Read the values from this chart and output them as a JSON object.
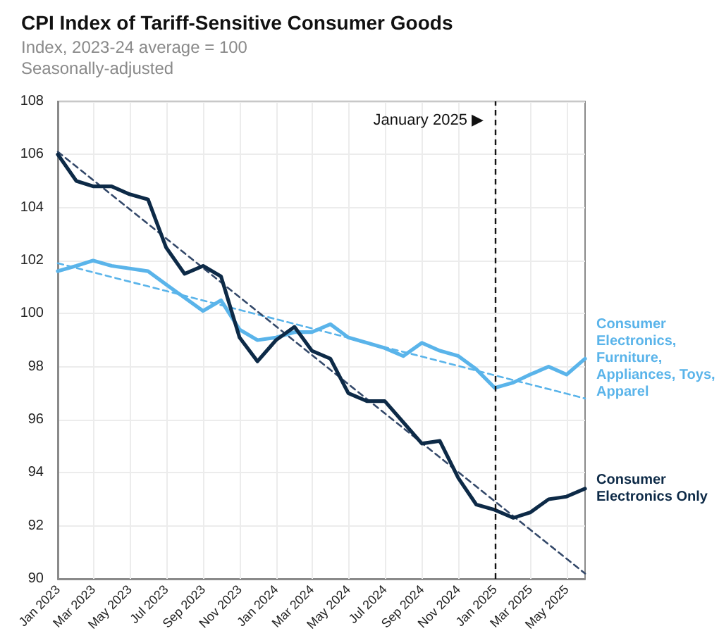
{
  "chart_data": {
    "type": "line",
    "title": "CPI Index of Tariff-Sensitive Consumer Goods",
    "subtitle": "Index, 2023-24 average = 100\nSeasonally-adjusted",
    "x": [
      "2023-01",
      "2023-02",
      "2023-03",
      "2023-04",
      "2023-05",
      "2023-06",
      "2023-07",
      "2023-08",
      "2023-09",
      "2023-10",
      "2023-11",
      "2023-12",
      "2024-01",
      "2024-02",
      "2024-03",
      "2024-04",
      "2024-05",
      "2024-06",
      "2024-07",
      "2024-08",
      "2024-09",
      "2024-10",
      "2024-11",
      "2024-12",
      "2025-01",
      "2025-02",
      "2025-03",
      "2025-04",
      "2025-05",
      "2025-06"
    ],
    "series": [
      {
        "name": "Consumer Electronics, Furniture, Appliances, Toys, Apparel",
        "color": "#5ab4ea",
        "values": [
          101.6,
          101.8,
          102.0,
          101.8,
          101.7,
          101.6,
          101.1,
          100.6,
          100.1,
          100.5,
          99.4,
          99.0,
          99.1,
          99.3,
          99.3,
          99.6,
          99.1,
          98.9,
          98.7,
          98.4,
          98.9,
          98.6,
          98.4,
          97.9,
          97.2,
          97.4,
          97.7,
          98.0,
          97.7,
          98.3
        ]
      },
      {
        "name": "Consumer Electronics Only",
        "color": "#0d2a47",
        "values": [
          106.0,
          105.0,
          104.8,
          104.8,
          104.5,
          104.3,
          102.5,
          101.5,
          101.8,
          101.4,
          99.1,
          98.2,
          99.0,
          99.5,
          98.6,
          98.3,
          97.0,
          96.7,
          96.7,
          95.9,
          95.1,
          95.2,
          93.8,
          92.8,
          92.6,
          92.3,
          92.5,
          93.0,
          93.1,
          93.4
        ]
      },
      {
        "type": "line",
        "color": "#5ab4ea",
        "line_style": "dashed",
        "x": [
          "2023-01",
          "2025-06"
        ],
        "values": [
          101.9,
          96.8
        ]
      },
      {
        "type": "line",
        "color": "#34496a",
        "line_style": "dashed",
        "x": [
          "2023-01",
          "2025-06"
        ],
        "values": [
          106.1,
          90.2
        ]
      }
    ],
    "xlim": [
      "2023-01",
      "2025-06"
    ],
    "xticks": [
      {
        "value": "2023-01",
        "label": "Jan 2023"
      },
      {
        "value": "2023-03",
        "label": "Mar 2023"
      },
      {
        "value": "2023-05",
        "label": "May 2023"
      },
      {
        "value": "2023-07",
        "label": "Jul 2023"
      },
      {
        "value": "2023-09",
        "label": "Sep 2023"
      },
      {
        "value": "2023-11",
        "label": "Nov 2023"
      },
      {
        "value": "2024-01",
        "label": "Jan 2024"
      },
      {
        "value": "2024-03",
        "label": "Mar 2024"
      },
      {
        "value": "2024-05",
        "label": "May 2024"
      },
      {
        "value": "2024-07",
        "label": "Jul 2024"
      },
      {
        "value": "2024-09",
        "label": "Sep 2024"
      },
      {
        "value": "2024-11",
        "label": "Nov 2024"
      },
      {
        "value": "2025-01",
        "label": "Jan 2025"
      },
      {
        "value": "2025-03",
        "label": "Mar 2025"
      },
      {
        "value": "2025-05",
        "label": "May 2025"
      }
    ],
    "ylim": [
      90,
      108
    ],
    "yticks": [
      90,
      92,
      94,
      96,
      98,
      100,
      102,
      104,
      106,
      108
    ],
    "ref_lines": [
      {
        "axis": "x",
        "value": "2025-01",
        "label": "January 2025 ▶",
        "color": "#111111",
        "line_style": "dashed"
      }
    ],
    "grid": true,
    "legend": false,
    "marker": "none",
    "line_style": "solid"
  }
}
